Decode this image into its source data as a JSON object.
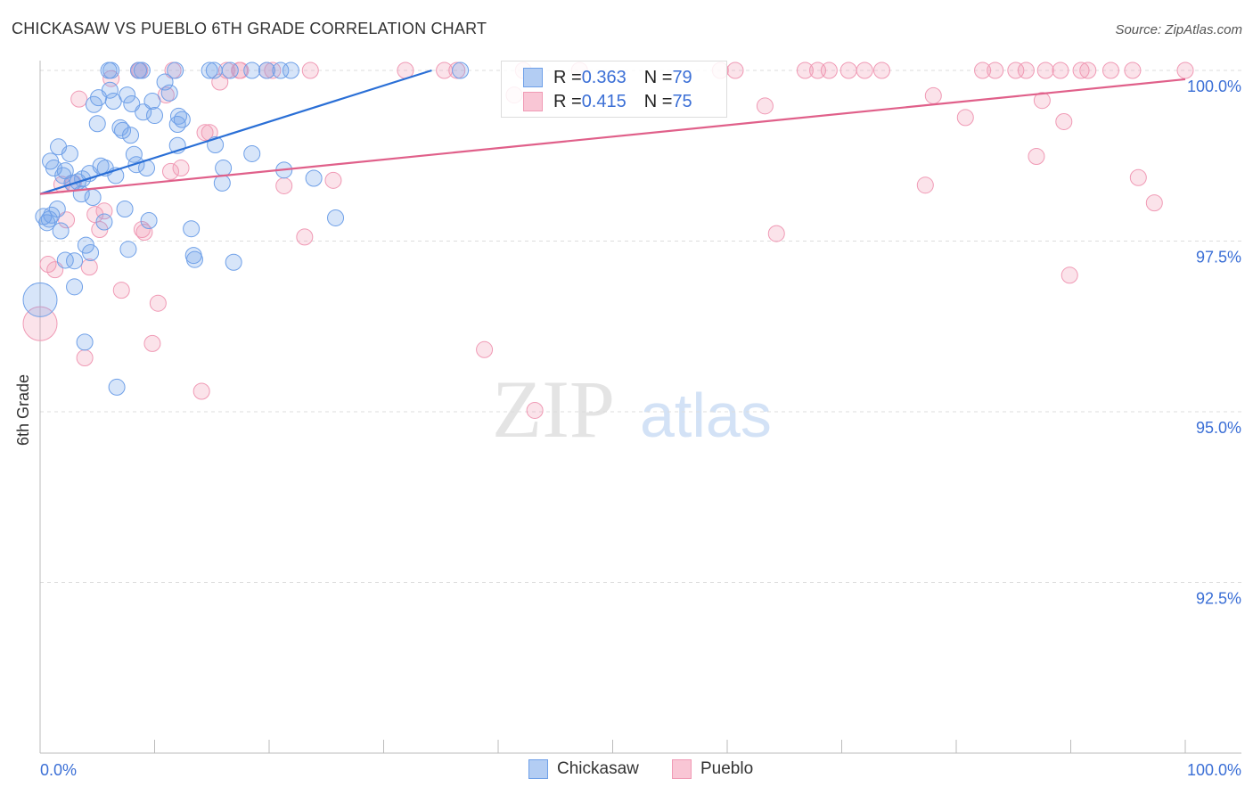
{
  "chart_data": {
    "type": "scatter",
    "title": "CHICKASAW VS PUEBLO 6TH GRADE CORRELATION CHART",
    "source": "Source: ZipAtlas.com",
    "xlabel": "",
    "ylabel": "6th Grade",
    "xlim": [
      0,
      100
    ],
    "ylim": [
      90,
      100
    ],
    "x_tick_labels": [
      "0.0%",
      "100.0%"
    ],
    "y_ticks": [
      100,
      97.5,
      95,
      92.5
    ],
    "y_tick_labels": [
      "100.0%",
      "97.5%",
      "95.0%",
      "92.5%"
    ],
    "grid": true,
    "watermark": "ZIPatlas",
    "legend": {
      "placement": "top-center",
      "rows": [
        {
          "r_label": "R = ",
          "r": "0.363",
          "n_label": "N = ",
          "n": "79"
        },
        {
          "r_label": "R = ",
          "r": "0.415",
          "n_label": "N = ",
          "n": "75"
        }
      ]
    },
    "colors": {
      "Chickasaw": "#6fa0e8",
      "Pueblo": "#f09ab5",
      "Chickasaw_line": "#2a6fd6",
      "Pueblo_line": "#e0608a"
    },
    "series": [
      {
        "name": "Chickasaw",
        "trend": [
          [
            0,
            98.19
          ],
          [
            34.2,
            100
          ]
        ],
        "points": [
          [
            6.0,
            100
          ],
          [
            6.2,
            100
          ],
          [
            8.6,
            100
          ],
          [
            8.9,
            100
          ],
          [
            11.8,
            100
          ],
          [
            14.8,
            100
          ],
          [
            15.2,
            100
          ],
          [
            16.6,
            100
          ],
          [
            18.5,
            100
          ],
          [
            19.8,
            100
          ],
          [
            21.0,
            100
          ],
          [
            21.9,
            100
          ],
          [
            36.7,
            100
          ],
          [
            10.9,
            99.83
          ],
          [
            6.1,
            99.71
          ],
          [
            7.6,
            99.64
          ],
          [
            5.1,
            99.6
          ],
          [
            11.3,
            99.67
          ],
          [
            9.8,
            99.55
          ],
          [
            4.7,
            99.5
          ],
          [
            8.0,
            99.51
          ],
          [
            6.4,
            99.55
          ],
          [
            9.0,
            99.39
          ],
          [
            10.0,
            99.34
          ],
          [
            12.1,
            99.33
          ],
          [
            12.4,
            99.28
          ],
          [
            12.0,
            99.21
          ],
          [
            5.0,
            99.22
          ],
          [
            7.0,
            99.16
          ],
          [
            7.2,
            99.12
          ],
          [
            7.9,
            99.05
          ],
          [
            12.0,
            98.9
          ],
          [
            15.3,
            98.91
          ],
          [
            1.6,
            98.88
          ],
          [
            2.6,
            98.78
          ],
          [
            18.5,
            98.78
          ],
          [
            8.2,
            98.77
          ],
          [
            0.9,
            98.67
          ],
          [
            5.3,
            98.6
          ],
          [
            8.4,
            98.62
          ],
          [
            9.3,
            98.57
          ],
          [
            1.2,
            98.57
          ],
          [
            2.2,
            98.53
          ],
          [
            16.0,
            98.57
          ],
          [
            4.3,
            98.49
          ],
          [
            6.6,
            98.46
          ],
          [
            21.3,
            98.54
          ],
          [
            2.0,
            98.46
          ],
          [
            23.9,
            98.42
          ],
          [
            3.7,
            98.41
          ],
          [
            2.8,
            98.35
          ],
          [
            15.9,
            98.35
          ],
          [
            3.6,
            98.19
          ],
          [
            4.6,
            98.14
          ],
          [
            0.3,
            97.86
          ],
          [
            0.6,
            97.77
          ],
          [
            1.0,
            97.88
          ],
          [
            1.5,
            97.97
          ],
          [
            1.8,
            97.65
          ],
          [
            5.6,
            97.78
          ],
          [
            7.4,
            97.97
          ],
          [
            9.5,
            97.8
          ],
          [
            25.8,
            97.84
          ],
          [
            13.2,
            97.68
          ],
          [
            4.0,
            97.44
          ],
          [
            7.7,
            97.38
          ],
          [
            4.4,
            97.33
          ],
          [
            2.2,
            97.22
          ],
          [
            3.0,
            97.21
          ],
          [
            13.4,
            97.29
          ],
          [
            13.5,
            97.23
          ],
          [
            16.9,
            97.19
          ],
          [
            3.0,
            96.83
          ],
          [
            0,
            96.64,
            "big"
          ],
          [
            3.9,
            96.02
          ],
          [
            6.7,
            95.36
          ],
          [
            3.3,
            98.37
          ],
          [
            0.8,
            97.82
          ],
          [
            5.7,
            98.57
          ]
        ]
      },
      {
        "name": "Pueblo",
        "trend": [
          [
            0,
            98.19
          ],
          [
            100,
            99.87
          ]
        ],
        "points": [
          [
            8.6,
            100
          ],
          [
            8.7,
            100
          ],
          [
            11.6,
            100
          ],
          [
            16.3,
            100
          ],
          [
            17.4,
            100
          ],
          [
            17.5,
            100
          ],
          [
            19.8,
            100
          ],
          [
            20.3,
            100
          ],
          [
            23.6,
            100
          ],
          [
            31.9,
            100
          ],
          [
            35.3,
            100
          ],
          [
            36.4,
            100
          ],
          [
            42.2,
            100
          ],
          [
            47.1,
            100
          ],
          [
            59.4,
            100
          ],
          [
            60.7,
            100
          ],
          [
            66.8,
            100
          ],
          [
            67.9,
            100
          ],
          [
            68.9,
            100
          ],
          [
            70.6,
            100
          ],
          [
            72.0,
            100
          ],
          [
            73.5,
            100
          ],
          [
            82.3,
            100
          ],
          [
            83.4,
            100
          ],
          [
            85.2,
            100
          ],
          [
            86.1,
            100
          ],
          [
            87.8,
            100
          ],
          [
            89.1,
            100
          ],
          [
            90.9,
            100
          ],
          [
            91.5,
            100
          ],
          [
            93.5,
            100
          ],
          [
            95.4,
            100
          ],
          [
            100,
            100
          ],
          [
            6.2,
            99.88
          ],
          [
            41.4,
            99.64
          ],
          [
            3.4,
            99.58
          ],
          [
            11.0,
            99.64
          ],
          [
            15.7,
            99.83
          ],
          [
            78.0,
            99.63
          ],
          [
            87.5,
            99.56
          ],
          [
            63.3,
            99.48
          ],
          [
            80.8,
            99.31
          ],
          [
            89.4,
            99.25
          ],
          [
            14.4,
            99.09
          ],
          [
            14.8,
            99.09
          ],
          [
            87.0,
            98.74
          ],
          [
            11.4,
            98.52
          ],
          [
            12.3,
            98.57
          ],
          [
            95.9,
            98.43
          ],
          [
            77.3,
            98.32
          ],
          [
            1.9,
            98.33
          ],
          [
            25.6,
            98.39
          ],
          [
            21.3,
            98.31
          ],
          [
            2.9,
            98.35
          ],
          [
            97.3,
            98.06
          ],
          [
            4.8,
            97.89
          ],
          [
            5.6,
            97.94
          ],
          [
            2.3,
            97.81
          ],
          [
            5.2,
            97.67
          ],
          [
            8.9,
            97.67
          ],
          [
            9.1,
            97.63
          ],
          [
            23.1,
            97.56
          ],
          [
            64.3,
            97.61
          ],
          [
            0.7,
            97.16
          ],
          [
            1.3,
            97.08
          ],
          [
            4.3,
            97.12
          ],
          [
            89.9,
            97.0
          ],
          [
            7.1,
            96.78
          ],
          [
            10.3,
            96.59
          ],
          [
            0,
            96.29,
            "big"
          ],
          [
            9.8,
            96.0
          ],
          [
            3.9,
            95.79
          ],
          [
            38.8,
            95.91
          ],
          [
            14.1,
            95.3
          ],
          [
            43.2,
            95.02
          ]
        ]
      }
    ]
  },
  "bottom_legend": [
    "Chickasaw",
    "Pueblo"
  ]
}
